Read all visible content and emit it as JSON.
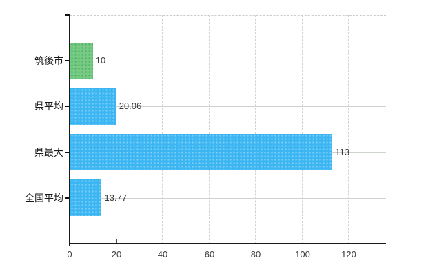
{
  "chart_data": {
    "type": "bar",
    "orientation": "horizontal",
    "title": "",
    "xlabel": "",
    "ylabel": "",
    "categories": [
      "筑後市",
      "県平均",
      "県最大",
      "全国平均"
    ],
    "values": [
      10,
      20.06,
      113,
      13.77
    ],
    "value_labels": [
      "10",
      "20.06",
      "113",
      "13.77"
    ],
    "bar_colors": [
      "#74cc84",
      "#3cb6f2",
      "#3cb6f2",
      "#3cb6f2"
    ],
    "x_tick_values": [
      0,
      20,
      40,
      60,
      80,
      100,
      120
    ],
    "x_tick_labels": [
      "0",
      "20",
      "40",
      "60",
      "80",
      "100",
      "120"
    ],
    "xlim": [
      0,
      136
    ],
    "grid": true,
    "legend": null
  },
  "colors": {
    "background": "#ffffff",
    "bar_green": "#74cc84",
    "bar_blue": "#3cb6f2",
    "axis": "#1a1a1a",
    "gridline_horizontal": "#ccd4cb",
    "gridline_vertical": "#d4cfd2",
    "plot_top_border": "#cfc9c9",
    "label_text": "#3a3a3a"
  }
}
